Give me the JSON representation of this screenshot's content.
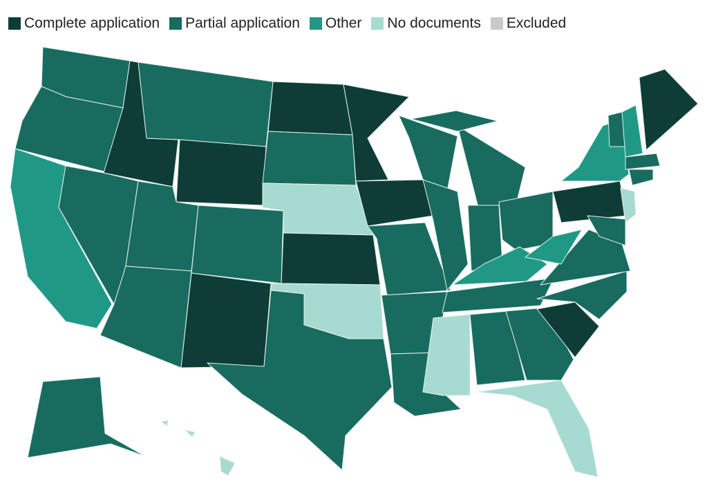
{
  "legend": [
    {
      "label": "Complete application",
      "color": "#0e3d37"
    },
    {
      "label": "Partial application",
      "color": "#186b5f"
    },
    {
      "label": "Other",
      "color": "#1f9985"
    },
    {
      "label": "No documents",
      "color": "#a7dad1"
    },
    {
      "label": "Excluded",
      "color": "#c9c9c9"
    }
  ]
}
